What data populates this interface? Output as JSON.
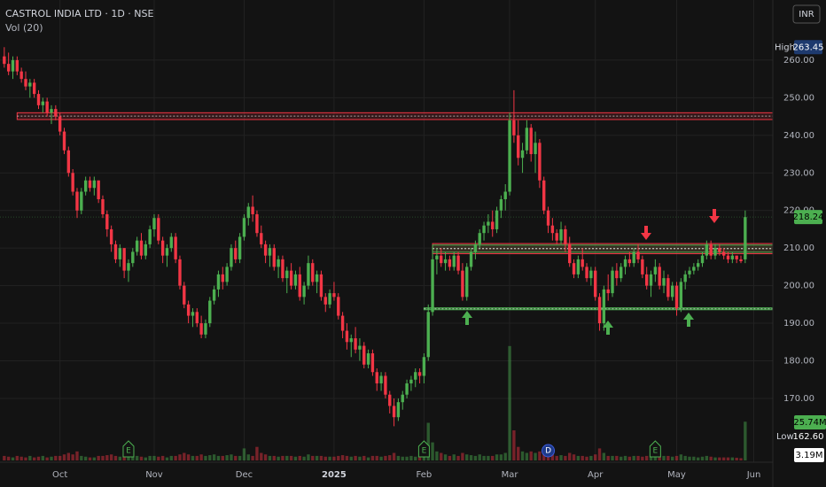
{
  "chart_data": {
    "type": "candlestick",
    "title": "CASTROL INDIA LTD · 1D · NSE",
    "volume_title": "Vol (20)",
    "currency": "INR",
    "up_color": "#4caf50",
    "down_color": "#f23645",
    "xlim": [
      -1,
      178
    ],
    "ylim": [
      153.5,
      276
    ],
    "yticks": [
      {
        "value": 260,
        "label": "260.00"
      },
      {
        "value": 250,
        "label": "250.00"
      },
      {
        "value": 240,
        "label": "240.00"
      },
      {
        "value": 230,
        "label": "230.00"
      },
      {
        "value": 220,
        "label": "220.00"
      },
      {
        "value": 210,
        "label": "210.00"
      },
      {
        "value": 200,
        "label": "200.00"
      },
      {
        "value": 190,
        "label": "190.00"
      },
      {
        "value": 180,
        "label": "180.00"
      },
      {
        "value": 170,
        "label": "170.00"
      }
    ],
    "xticks": [
      {
        "value": 13,
        "label": "Oct"
      },
      {
        "value": 35,
        "label": "Nov"
      },
      {
        "value": 56,
        "label": "Dec"
      },
      {
        "value": 77,
        "label": "2025"
      },
      {
        "value": 98,
        "label": "Feb"
      },
      {
        "value": 118,
        "label": "Mar"
      },
      {
        "value": 138,
        "label": "Apr"
      },
      {
        "value": 157,
        "label": "May"
      },
      {
        "value": 175,
        "label": "Jun"
      }
    ],
    "grid": true,
    "ohlc": [
      [
        261,
        263.45,
        258,
        259
      ],
      [
        259,
        262,
        256,
        257
      ],
      [
        257,
        261,
        255,
        260
      ],
      [
        260,
        261,
        256,
        257
      ],
      [
        257,
        258,
        254,
        255
      ],
      [
        255,
        257,
        252,
        253
      ],
      [
        253,
        255,
        250,
        254
      ],
      [
        254,
        255,
        250,
        251
      ],
      [
        251,
        252,
        247,
        248
      ],
      [
        248,
        250,
        246,
        249
      ],
      [
        249,
        250,
        245,
        246
      ],
      [
        246,
        248,
        243,
        247
      ],
      [
        247,
        248,
        244,
        245
      ],
      [
        245,
        246,
        240,
        241
      ],
      [
        241,
        242,
        235,
        236
      ],
      [
        236,
        237,
        229,
        230
      ],
      [
        230,
        231,
        224,
        225
      ],
      [
        225,
        226,
        218,
        220
      ],
      [
        220,
        226,
        219,
        225
      ],
      [
        225,
        229,
        224,
        228
      ],
      [
        228,
        229,
        225,
        226
      ],
      [
        226,
        229,
        224,
        228
      ],
      [
        228,
        228,
        222,
        223
      ],
      [
        223,
        224,
        218,
        219
      ],
      [
        219,
        220,
        213,
        215
      ],
      [
        215,
        216,
        209,
        211
      ],
      [
        211,
        212,
        206,
        207
      ],
      [
        207,
        211,
        205,
        210
      ],
      [
        210,
        210,
        202,
        204
      ],
      [
        204,
        207,
        201,
        206
      ],
      [
        206,
        210,
        205,
        209
      ],
      [
        209,
        213,
        208,
        212
      ],
      [
        212,
        214,
        207,
        208
      ],
      [
        208,
        212,
        207,
        211
      ],
      [
        211,
        216,
        210,
        215
      ],
      [
        215,
        219,
        213,
        218
      ],
      [
        218,
        219,
        211,
        212
      ],
      [
        212,
        213,
        206,
        208
      ],
      [
        208,
        211,
        205,
        210
      ],
      [
        210,
        214,
        209,
        213
      ],
      [
        213,
        214,
        206,
        207
      ],
      [
        207,
        208,
        199,
        200
      ],
      [
        200,
        201,
        194,
        195
      ],
      [
        195,
        196,
        190,
        192
      ],
      [
        192,
        194,
        189,
        193
      ],
      [
        193,
        194,
        189,
        190
      ],
      [
        190,
        192,
        186,
        187
      ],
      [
        187,
        191,
        186,
        190
      ],
      [
        190,
        197,
        189,
        196
      ],
      [
        196,
        200,
        195,
        199
      ],
      [
        199,
        204,
        197,
        203
      ],
      [
        203,
        205,
        199,
        201
      ],
      [
        201,
        206,
        200,
        205
      ],
      [
        205,
        211,
        204,
        210
      ],
      [
        210,
        212,
        206,
        207
      ],
      [
        207,
        214,
        206,
        213
      ],
      [
        213,
        219,
        212,
        218
      ],
      [
        218,
        222,
        216,
        221
      ],
      [
        221,
        224,
        217,
        219
      ],
      [
        219,
        220,
        213,
        214
      ],
      [
        214,
        216,
        210,
        211
      ],
      [
        211,
        212,
        206,
        208
      ],
      [
        208,
        211,
        205,
        210
      ],
      [
        210,
        211,
        204,
        205
      ],
      [
        205,
        208,
        202,
        207
      ],
      [
        207,
        208,
        201,
        202
      ],
      [
        202,
        205,
        198,
        204
      ],
      [
        204,
        206,
        199,
        200
      ],
      [
        200,
        204,
        199,
        203
      ],
      [
        203,
        205,
        196,
        197
      ],
      [
        197,
        201,
        195,
        200
      ],
      [
        200,
        208,
        199,
        206
      ],
      [
        206,
        207,
        200,
        201
      ],
      [
        201,
        204,
        198,
        203
      ],
      [
        203,
        204,
        196,
        197
      ],
      [
        197,
        198,
        193,
        195
      ],
      [
        195,
        199,
        194,
        198
      ],
      [
        198,
        201,
        196,
        197
      ],
      [
        197,
        198,
        191,
        192
      ],
      [
        192,
        193,
        186,
        188
      ],
      [
        188,
        190,
        183,
        185
      ],
      [
        185,
        187,
        181,
        186
      ],
      [
        186,
        189,
        182,
        183
      ],
      [
        183,
        186,
        180,
        184
      ],
      [
        184,
        185,
        178,
        179
      ],
      [
        179,
        183,
        178,
        182
      ],
      [
        182,
        183,
        176,
        177
      ],
      [
        177,
        178,
        172,
        174
      ],
      [
        174,
        177,
        172,
        176
      ],
      [
        176,
        177,
        170,
        171
      ],
      [
        171,
        172,
        166,
        168
      ],
      [
        168,
        170,
        162.6,
        165
      ],
      [
        165,
        170,
        164,
        169
      ],
      [
        169,
        172,
        167,
        171
      ],
      [
        171,
        175,
        170,
        174
      ],
      [
        174,
        176,
        172,
        175
      ],
      [
        175,
        178,
        173,
        177
      ],
      [
        177,
        178,
        174,
        176
      ],
      [
        176,
        182,
        174,
        181
      ],
      [
        181,
        195,
        180,
        193
      ],
      [
        193,
        210,
        192,
        207
      ],
      [
        207,
        210,
        203,
        208
      ],
      [
        208,
        210,
        205,
        206
      ],
      [
        206,
        209,
        204,
        207
      ],
      [
        207,
        208,
        204,
        205
      ],
      [
        205,
        209,
        204,
        208
      ],
      [
        208,
        209,
        203,
        204
      ],
      [
        204,
        206,
        196,
        197
      ],
      [
        197,
        206,
        196,
        205
      ],
      [
        205,
        210,
        204,
        209
      ],
      [
        209,
        212,
        207,
        211
      ],
      [
        211,
        215,
        210,
        214
      ],
      [
        214,
        217,
        212,
        216
      ],
      [
        216,
        219,
        214,
        217
      ],
      [
        217,
        220,
        213,
        215
      ],
      [
        215,
        221,
        214,
        220
      ],
      [
        220,
        224,
        218,
        223
      ],
      [
        223,
        227,
        220,
        225
      ],
      [
        225,
        246,
        224,
        244
      ],
      [
        244,
        252,
        238,
        240
      ],
      [
        240,
        244,
        232,
        234
      ],
      [
        234,
        238,
        230,
        236
      ],
      [
        236,
        244,
        235,
        242
      ],
      [
        242,
        243,
        233,
        235
      ],
      [
        235,
        241,
        230,
        238
      ],
      [
        238,
        239,
        226,
        228
      ],
      [
        228,
        229,
        219,
        220
      ],
      [
        220,
        221,
        214,
        216
      ],
      [
        216,
        218,
        212,
        214
      ],
      [
        214,
        215,
        211,
        212
      ],
      [
        212,
        217,
        211,
        215
      ],
      [
        215,
        216,
        209,
        211
      ],
      [
        211,
        213,
        205,
        206
      ],
      [
        206,
        207,
        202,
        203
      ],
      [
        203,
        208,
        202,
        207
      ],
      [
        207,
        210,
        204,
        205
      ],
      [
        205,
        206,
        201,
        202
      ],
      [
        202,
        205,
        200,
        204
      ],
      [
        204,
        205,
        196,
        197
      ],
      [
        197,
        198,
        188,
        190
      ],
      [
        190,
        200,
        188,
        199
      ],
      [
        199,
        203,
        196,
        198
      ],
      [
        198,
        205,
        197,
        204
      ],
      [
        204,
        206,
        200,
        202
      ],
      [
        202,
        206,
        201,
        205
      ],
      [
        205,
        208,
        203,
        207
      ],
      [
        207,
        209,
        205,
        206
      ],
      [
        206,
        210,
        205,
        209
      ],
      [
        209,
        211,
        206,
        207
      ],
      [
        207,
        208,
        202,
        203
      ],
      [
        203,
        205,
        199,
        200
      ],
      [
        200,
        204,
        197,
        203
      ],
      [
        203,
        207,
        201,
        205
      ],
      [
        205,
        206,
        199,
        200
      ],
      [
        200,
        204,
        198,
        202
      ],
      [
        202,
        203,
        196,
        197
      ],
      [
        197,
        201,
        196,
        200
      ],
      [
        200,
        201,
        192,
        194
      ],
      [
        194,
        202,
        193,
        201
      ],
      [
        201,
        204,
        199,
        203
      ],
      [
        203,
        205,
        202,
        204
      ],
      [
        204,
        206,
        203,
        205
      ],
      [
        205,
        207,
        204,
        206
      ],
      [
        206,
        209,
        205,
        208
      ],
      [
        208,
        212,
        207,
        211
      ],
      [
        211,
        212,
        207,
        208
      ],
      [
        208,
        211,
        207,
        210
      ],
      [
        210,
        211,
        208,
        209
      ],
      [
        209,
        210,
        207,
        208
      ],
      [
        208,
        209,
        206,
        207
      ],
      [
        207,
        209,
        206,
        208
      ],
      [
        208,
        208,
        206,
        207
      ],
      [
        207,
        208,
        206,
        206.5
      ],
      [
        207,
        220,
        206,
        218.24
      ]
    ],
    "volume": [
      3,
      2.5,
      2,
      3,
      2.5,
      2,
      3,
      2,
      2.5,
      3,
      2,
      2.5,
      3,
      3,
      4,
      5,
      4,
      6,
      3,
      2.5,
      2,
      2,
      3,
      3,
      3.5,
      4,
      3,
      2.5,
      4,
      3,
      2.5,
      3,
      2.5,
      2,
      3,
      3,
      2.5,
      3,
      2,
      3,
      3,
      4,
      5,
      4,
      3,
      3,
      4,
      3,
      3.5,
      4,
      3,
      3,
      3.5,
      4,
      3,
      3,
      8,
      4,
      3,
      9,
      5,
      4,
      3,
      3,
      2.5,
      3,
      3,
      3,
      2.5,
      3,
      2.5,
      4,
      3,
      3,
      3,
      2.5,
      2.5,
      2.5,
      3,
      3.5,
      3,
      2.5,
      3,
      2.5,
      3,
      2,
      3,
      3,
      2.5,
      3,
      3.5,
      5,
      3,
      2.5,
      2.5,
      3,
      2.5,
      2,
      4,
      25,
      12,
      6,
      5,
      4,
      3,
      4,
      3,
      5,
      4,
      3.5,
      3,
      4,
      3,
      3,
      3,
      4,
      4,
      5,
      76,
      20,
      9,
      6,
      5,
      6,
      5,
      6,
      5,
      4,
      4,
      3,
      3.5,
      3,
      5,
      4,
      3,
      3,
      2.5,
      3,
      4,
      8,
      5,
      3,
      3,
      3,
      2.5,
      3,
      2.5,
      3,
      3,
      2.5,
      3,
      2.5,
      3,
      2.5,
      3,
      3,
      2.5,
      3,
      4,
      3,
      2.5,
      2.5,
      2,
      2.5,
      3,
      2.5,
      2,
      2,
      2,
      2,
      2,
      1.8,
      1.5,
      25.74
    ],
    "zones": [
      {
        "low": 244.2,
        "high": 246,
        "start": 3,
        "color": "#f23645"
      },
      {
        "low": 208.5,
        "high": 211.2,
        "start": 100,
        "color": "#f23645"
      },
      {
        "low": 208.9,
        "high": 210.8,
        "start": 100,
        "color": "#4caf50"
      },
      {
        "low": 193.6,
        "high": 194.1,
        "start": 98,
        "color": "#4caf50"
      }
    ],
    "events": [
      {
        "at": 29,
        "label": "E"
      },
      {
        "at": 98,
        "label": "E"
      },
      {
        "at": 127,
        "label": "D"
      },
      {
        "at": 152,
        "label": "E"
      }
    ],
    "high": {
      "name": "High",
      "value": 263.45
    },
    "low": {
      "name": "Low",
      "value": {
        "value": 162.6,
        "label": "162.60"
      }
    },
    "last": 218.24,
    "last_volume": {
      "value": 25.74,
      "label": "25.74M"
    },
    "volume_average": {
      "value": 3.19,
      "label": "3.19M"
    }
  }
}
